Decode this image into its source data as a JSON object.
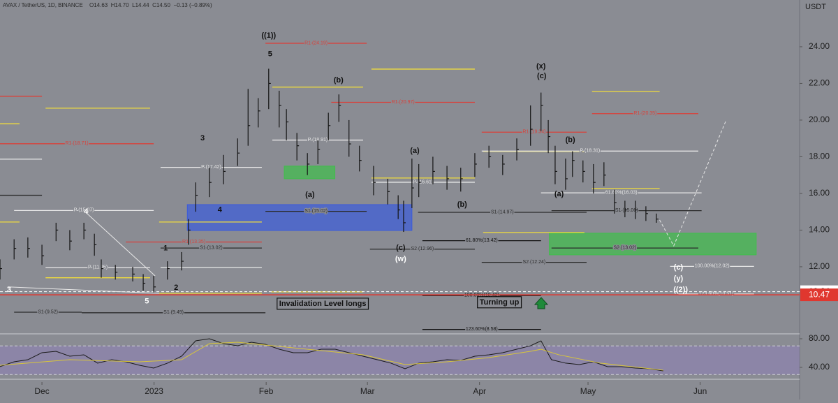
{
  "header": {
    "symbol": "AVAX / TetherUS, 1D, BINANCE",
    "ohlc": [
      "O14.63",
      "H14.70",
      "L14.44",
      "C14.50"
    ],
    "change": "−0.13 (−0.89%)"
  },
  "chart_data": [
    {
      "type": "ohlc",
      "unit": "USDT",
      "color": "#141414",
      "xlim": [
        -11.6,
        209.5
      ],
      "ylim": [
        8.34,
        26.55
      ],
      "xticks": [
        {
          "value": 0,
          "label": "Dec"
        },
        {
          "value": 31,
          "label": "2023"
        },
        {
          "value": 62,
          "label": "Feb"
        },
        {
          "value": 90,
          "label": "Mar"
        },
        {
          "value": 121,
          "label": "Apr"
        },
        {
          "value": 151,
          "label": "May"
        },
        {
          "value": 182,
          "label": "Jun"
        }
      ],
      "yticks": [
        {
          "value": 12,
          "label": "12.00"
        },
        {
          "value": 14,
          "label": "14.00"
        },
        {
          "value": 16,
          "label": "16.00"
        },
        {
          "value": 18,
          "label": "18.00"
        },
        {
          "value": 20,
          "label": "20.00"
        },
        {
          "value": 22,
          "label": "22.00"
        },
        {
          "value": 24,
          "label": "24.00"
        }
      ],
      "x": [
        -11.6,
        -7.7,
        -3.9,
        0,
        3.9,
        7.7,
        11.6,
        14.5,
        16.4,
        20.3,
        25.1,
        28,
        30.9,
        34.7,
        38.6,
        40.5,
        42.5,
        46.3,
        50.2,
        54.1,
        57,
        59.8,
        62.7,
        65.6,
        67.6,
        70.5,
        73.4,
        76.3,
        79.2,
        82.1,
        84.9,
        87.8,
        91.7,
        95.6,
        98.5,
        100,
        102.3,
        104.2,
        108.1,
        112,
        115.8,
        119.7,
        123.6,
        127.4,
        131.3,
        135.1,
        138,
        140,
        141.9,
        144.8,
        146.7,
        149.6,
        152.5,
        155.4,
        158.3,
        161.2,
        164.1,
        167,
        169.9
      ],
      "high": [
        12.4,
        13.5,
        13.6,
        13.2,
        14.4,
        14.0,
        14.4,
        13.8,
        12.4,
        12.1,
        12.0,
        11.6,
        11.5,
        12.3,
        12.8,
        14.6,
        16.6,
        17.4,
        18.1,
        19.0,
        21.7,
        21.2,
        22.8,
        21.6,
        20.6,
        19.3,
        18.2,
        18.9,
        20.4,
        21.4,
        20.0,
        18.6,
        17.5,
        16.8,
        15.9,
        15.6,
        17.9,
        17.6,
        18.0,
        17.5,
        17.4,
        18.2,
        18.6,
        18.1,
        19.0,
        20.8,
        21.5,
        20.0,
        18.6,
        17.9,
        18.3,
        17.8,
        17.6,
        17.7,
        16.2,
        15.6,
        15.6,
        15.3,
        14.9
      ],
      "low": [
        11.3,
        12.4,
        12.5,
        12.1,
        13.4,
        12.9,
        13.5,
        12.6,
        11.4,
        11.3,
        11.2,
        10.7,
        10.6,
        11.3,
        11.8,
        13.2,
        15.0,
        15.8,
        16.5,
        17.5,
        18.6,
        19.6,
        20.6,
        19.6,
        18.9,
        17.8,
        17.0,
        17.6,
        18.9,
        19.9,
        18.0,
        17.2,
        15.9,
        15.4,
        14.6,
        13.9,
        15.2,
        15.8,
        16.5,
        16.2,
        16.1,
        16.9,
        17.4,
        17.0,
        17.8,
        18.6,
        19.4,
        18.2,
        16.5,
        16.2,
        16.9,
        16.6,
        16.0,
        16.4,
        14.9,
        14.7,
        14.6,
        14.5,
        14.4
      ],
      "close": [
        11.9,
        13.0,
        13.0,
        12.6,
        14.0,
        13.4,
        14.0,
        13.2,
        11.9,
        11.7,
        11.6,
        11.1,
        10.9,
        11.9,
        12.3,
        14.0,
        15.9,
        16.6,
        17.2,
        18.2,
        19.7,
        20.5,
        22.0,
        20.8,
        19.9,
        18.6,
        17.6,
        18.4,
        19.7,
        20.8,
        18.7,
        17.8,
        16.6,
        16.1,
        15.1,
        14.4,
        16.3,
        16.6,
        17.2,
        16.8,
        16.8,
        17.6,
        18.0,
        17.6,
        18.4,
        19.5,
        20.8,
        19.1,
        17.2,
        16.8,
        17.8,
        17.2,
        16.6,
        17.0,
        15.5,
        15.1,
        15.1,
        14.9,
        14.6
      ],
      "markers": [
        {
          "value": 10.64,
          "color": "#ffffff",
          "text_color": "#111111",
          "dashed": true
        },
        {
          "value": 10.47,
          "color": "#e0372f",
          "text_color": "#ffffff",
          "dashed": false
        }
      ],
      "zones": [
        {
          "from": 40.2,
          "to": 102.3,
          "top": 15.39,
          "bottom": 13.98,
          "color": "#3b5bdb"
        },
        {
          "from": 67,
          "to": 81,
          "top": 17.49,
          "bottom": 16.8,
          "color": "#3fbf4a"
        },
        {
          "from": 140.3,
          "to": 197.5,
          "top": 13.83,
          "bottom": 12.65,
          "color": "#3fbf4a"
        }
      ],
      "levels": [
        {
          "value": 14.44,
          "from": -11.6,
          "to": -6.2,
          "color": "#f0dc3c"
        },
        {
          "value": 19.8,
          "from": -11.6,
          "to": -6.2,
          "color": "#f0dc3c"
        },
        {
          "value": 20.65,
          "from": 1,
          "to": 29.9,
          "color": "#f0dc3c"
        },
        {
          "value": 11.4,
          "from": 1,
          "to": 29.9,
          "color": "#f0dc3c"
        },
        {
          "value": 14.44,
          "from": 32.4,
          "to": 60.8,
          "color": "#f0dc3c"
        },
        {
          "value": 21.8,
          "from": 63.7,
          "to": 88.8,
          "color": "#f0dc3c"
        },
        {
          "value": 22.78,
          "from": 91.1,
          "to": 119.7,
          "color": "#f0dc3c"
        },
        {
          "value": 16.84,
          "from": 91.1,
          "to": 119.7,
          "color": "#f0dc3c"
        },
        {
          "value": 10.63,
          "from": 63.3,
          "to": 88.8,
          "color": "#f0dc3c"
        },
        {
          "value": 10.55,
          "from": 32.4,
          "to": 60.8,
          "color": "#f0dc3c"
        },
        {
          "value": 13.87,
          "from": 122,
          "to": 150,
          "color": "#f0dc3c"
        },
        {
          "value": 21.56,
          "from": 152.1,
          "to": 170.8,
          "color": "#f0dc3c"
        },
        {
          "value": 16.27,
          "from": 152.1,
          "to": 170.8,
          "color": "#f0dc3c"
        },
        {
          "value": 18.29,
          "from": 122,
          "to": 150,
          "color": "#f0dc3c"
        },
        {
          "value": 17.87,
          "from": -11.6,
          "to": 0,
          "color": "#e8e8e8"
        },
        {
          "value": 15.07,
          "from": -7.7,
          "to": 30.9,
          "color": "#e8e8e8",
          "label": "P (15.07)"
        },
        {
          "value": 11.95,
          "from": 1,
          "to": 29.9,
          "color": "#e8e8e8",
          "label": "P (11.95)"
        },
        {
          "value": 11.96,
          "from": 32.8,
          "to": 60.8,
          "color": "#e8e8e8"
        },
        {
          "value": 17.42,
          "from": 32.8,
          "to": 60.8,
          "color": "#e8e8e8",
          "label": "P (17.42)"
        },
        {
          "value": 18.91,
          "from": 63.7,
          "to": 88.8,
          "color": "#e8e8e8",
          "label": "P (18.91)"
        },
        {
          "value": 16.61,
          "from": 91.1,
          "to": 119.7,
          "color": "#e8e8e8",
          "label": "P (16.61)"
        },
        {
          "value": 18.31,
          "from": 121.6,
          "to": 181.5,
          "color": "#e8e8e8",
          "label": "P (18.31)"
        },
        {
          "value": 16.03,
          "from": 138,
          "to": 182.4,
          "color": "#e8e8e8",
          "label": "61.80%(16.03)"
        },
        {
          "value": 21.3,
          "from": -11.6,
          "to": 0,
          "color": "#d9403a"
        },
        {
          "value": 18.71,
          "from": -11.6,
          "to": 30.9,
          "color": "#d9403a",
          "label": "R1 (18.71)"
        },
        {
          "value": 13.35,
          "from": 23.2,
          "to": 60.8,
          "color": "#d9403a",
          "label": "R1 (13.35)"
        },
        {
          "value": 24.19,
          "from": 61.8,
          "to": 89.8,
          "color": "#d9403a",
          "label": "R1 (24.19)"
        },
        {
          "value": 20.97,
          "from": 80,
          "to": 119.7,
          "color": "#d9403a",
          "label": "R1 (20.97)"
        },
        {
          "value": 19.34,
          "from": 121.6,
          "to": 150.6,
          "color": "#d9403a",
          "label": "R1 (19.34)"
        },
        {
          "value": 20.35,
          "from": 152.1,
          "to": 181.5,
          "color": "#d9403a",
          "label": "R1 (20.35)"
        },
        {
          "value": 15.9,
          "from": -11.6,
          "to": 0,
          "color": "#2b2b2b"
        },
        {
          "value": 13.02,
          "from": 32.8,
          "to": 60.8,
          "color": "#2b2b2b",
          "label": "S1 (13.02)"
        },
        {
          "value": 9.52,
          "from": -7.7,
          "to": 11,
          "color": "#2b2b2b",
          "label": "S1 (9.52)"
        },
        {
          "value": 9.49,
          "from": 11,
          "to": 61.8,
          "color": "#2b2b2b",
          "label": "S1 (9.49)"
        },
        {
          "value": 15.02,
          "from": 61.8,
          "to": 89.8,
          "color": "#2b2b2b",
          "label": "S1 (15.02)"
        },
        {
          "value": 12.96,
          "from": 90.7,
          "to": 119.7,
          "color": "#2b2b2b",
          "label": "S2 (12.96)"
        },
        {
          "value": 14.97,
          "from": 104,
          "to": 150.6,
          "color": "#2b2b2b",
          "label": "S1 (14.97)"
        },
        {
          "value": 12.24,
          "from": 121.6,
          "to": 150.6,
          "color": "#2b2b2b",
          "label": "S2 (12.24)"
        },
        {
          "value": 13.42,
          "from": 105.2,
          "to": 138,
          "color": "#111111",
          "label": "61.80%(13.42)"
        },
        {
          "value": 13.02,
          "from": 140.9,
          "to": 181.5,
          "color": "#2b2b2b",
          "label": "S2 (13.02)"
        },
        {
          "value": 15.06,
          "from": 140.9,
          "to": 182.4,
          "color": "#2b2b2b",
          "label": "S1 (15.06)"
        },
        {
          "value": 10.43,
          "from": 105.2,
          "to": 138,
          "color": "#111111",
          "label": "100.00%(10.43)"
        },
        {
          "value": 8.58,
          "from": 105.2,
          "to": 138,
          "color": "#111111",
          "label": "123.60%(8.58)"
        },
        {
          "value": 12.02,
          "from": 173.7,
          "to": 196.9,
          "color": "#e8e8e8",
          "label": "100.00%(12.02)"
        },
        {
          "value": 10.51,
          "from": 176,
          "to": 196.9,
          "color": "#e8e8e8",
          "label": "123.60%(10.51)"
        }
      ],
      "trendlines": [
        {
          "x": [
            -9.5,
            32.4
          ],
          "y": [
            10.9,
            10.55
          ],
          "color": "#e8e8e8",
          "dashed": false
        },
        {
          "x": [
            12.2,
            31.3
          ],
          "y": [
            14.95,
            11.5
          ],
          "color": "#e8e8e8",
          "dashed": false
        },
        {
          "x": [
            170.8,
            174.7,
            189.2
          ],
          "y": [
            14.55,
            13.14,
            20.0
          ],
          "color": "#e8e8e8",
          "dashed": true
        }
      ],
      "annotations": [
        {
          "text": "((1))",
          "x": 62.7,
          "y": 24.6,
          "color": "#111111"
        },
        {
          "text": "5",
          "x": 63.1,
          "y": 23.6,
          "color": "#111111"
        },
        {
          "text": "3",
          "x": 44.4,
          "y": 19.0,
          "color": "#111111"
        },
        {
          "text": "4",
          "x": 49.2,
          "y": 15.1,
          "color": "#111111"
        },
        {
          "text": "1",
          "x": 34.2,
          "y": 13.0,
          "color": "#111111"
        },
        {
          "text": "2",
          "x": 37.1,
          "y": 10.86,
          "color": "#111111"
        },
        {
          "text": "5",
          "x": 29,
          "y": 10.1,
          "color": "#ffffff"
        },
        {
          "text": "3",
          "x": -9.1,
          "y": 10.74,
          "color": "#ffffff"
        },
        {
          "text": "4",
          "x": 12.2,
          "y": 15.0,
          "color": "#ffffff"
        },
        {
          "text": "(b)",
          "x": 82,
          "y": 22.17,
          "color": "#111111"
        },
        {
          "text": "(a)",
          "x": 74.1,
          "y": 15.92,
          "color": "#111111"
        },
        {
          "text": "(a)",
          "x": 103.1,
          "y": 18.32,
          "color": "#111111"
        },
        {
          "text": "(b)",
          "x": 116.2,
          "y": 15.39,
          "color": "#111111"
        },
        {
          "text": "(c)",
          "x": 99.2,
          "y": 13.03,
          "color": "#111111"
        },
        {
          "text": "(w)",
          "x": 99.2,
          "y": 12.42,
          "color": "#ffffff"
        },
        {
          "text": "(x)",
          "x": 138,
          "y": 22.93,
          "color": "#111111"
        },
        {
          "text": "(c)",
          "x": 138.2,
          "y": 22.4,
          "color": "#111111"
        },
        {
          "text": "(b)",
          "x": 146.1,
          "y": 18.9,
          "color": "#111111"
        },
        {
          "text": "(a)",
          "x": 143,
          "y": 15.96,
          "color": "#111111"
        },
        {
          "text": "(c)",
          "x": 176,
          "y": 11.96,
          "color": "#ffffff"
        },
        {
          "text": "(y)",
          "x": 176,
          "y": 11.35,
          "color": "#ffffff"
        },
        {
          "text": "((2))",
          "x": 176.6,
          "y": 10.74,
          "color": "#ffffff"
        }
      ],
      "boxes": [
        {
          "text": "Invalidation Level longs",
          "x": 65.6,
          "y": 9.98
        },
        {
          "text": "Turning up",
          "x": 121,
          "y": 10.06
        }
      ]
    },
    {
      "type": "line",
      "xlim": [
        -11.6,
        209.5
      ],
      "ylim": [
        26.3,
        84.9
      ],
      "yticks": [
        {
          "value": 40,
          "label": "40.00"
        },
        {
          "value": 80,
          "label": "80.00"
        }
      ],
      "band": [
        30,
        70
      ],
      "band_color": "#8e7fb8",
      "series": [
        {
          "name": "RSI",
          "color": "#1a1a1a",
          "x": [
            -11.6,
            -7.7,
            -3.9,
            0,
            3.9,
            7.7,
            11.6,
            15.4,
            19.3,
            23.2,
            27,
            30.9,
            34.7,
            38.6,
            42.5,
            46.3,
            50.2,
            54.1,
            57.9,
            61.8,
            65.6,
            69.5,
            73.4,
            77.2,
            81.1,
            84.9,
            88.8,
            92.7,
            96.5,
            100.4,
            104.2,
            108.1,
            112,
            115.8,
            119.7,
            123.6,
            127.4,
            131.3,
            135.1,
            138,
            140.9,
            144.8,
            148.6,
            152.5,
            156.4,
            160.2,
            164.1,
            168,
            171.8
          ],
          "values": [
            41.0,
            47.8,
            50.7,
            60.5,
            62.4,
            55.6,
            57.6,
            45.9,
            50.7,
            47.8,
            42.9,
            39.0,
            45.9,
            55.6,
            77.1,
            80.0,
            73.2,
            70.2,
            75.1,
            72.2,
            65.4,
            60.5,
            60.5,
            65.4,
            65.4,
            60.5,
            55.6,
            50.7,
            45.9,
            38.0,
            45.9,
            47.8,
            50.7,
            49.8,
            55.6,
            57.6,
            60.5,
            65.4,
            70.2,
            77.1,
            50.7,
            45.9,
            43.9,
            47.8,
            41.0,
            41.0,
            39.0,
            38.0,
            35.1
          ]
        },
        {
          "name": "RSI-based MA",
          "color": "#d9c63a",
          "x": [
            -11.6,
            7.7,
            27,
            38.6,
            46.3,
            54.1,
            65.6,
            77.2,
            88.8,
            100.4,
            112,
            123.6,
            135.1,
            138,
            142.9,
            154.4,
            171.8
          ],
          "values": [
            42.9,
            50.7,
            47.8,
            50.7,
            73.2,
            75.1,
            69.3,
            63.4,
            57.6,
            43.9,
            47.8,
            53.7,
            62.4,
            65.4,
            57.6,
            45.9,
            36.1
          ]
        }
      ]
    }
  ]
}
